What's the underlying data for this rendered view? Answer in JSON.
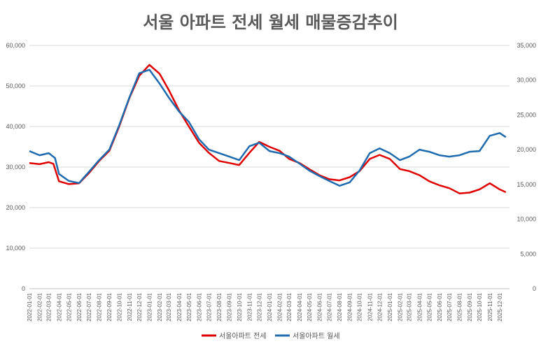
{
  "chart_data": {
    "type": "line",
    "title": "서울 아파트 전세 월세 매물증감추이",
    "legend_position": "bottom",
    "grid": true,
    "y_left": {
      "range": [
        0,
        60000
      ],
      "ticks": [
        "0",
        "10,000",
        "20,000",
        "30,000",
        "40,000",
        "50,000",
        "60,000"
      ]
    },
    "y_right": {
      "range": [
        0,
        35000
      ],
      "ticks": [
        "0",
        "5,000",
        "10,000",
        "15,000",
        "20,000",
        "25,000",
        "30,000",
        "35,000"
      ]
    },
    "x_labels": [
      "2022-01-01",
      "2022-02-01",
      "2022-03-01",
      "2022-04-01",
      "2022-05-01",
      "2022-06-01",
      "2022-07-01",
      "2022-08-01",
      "2022-09-01",
      "2022-10-01",
      "2022-11-01",
      "2022-12-01",
      "2023-01-01",
      "2023-02-01",
      "2023-03-01",
      "2023-04-01",
      "2023-05-01",
      "2023-06-01",
      "2023-07-01",
      "2023-08-01",
      "2023-09-01",
      "2023-10-01",
      "2023-11-01",
      "2023-12-01",
      "2024-01-01",
      "2024-02-01",
      "2024-03-01",
      "2024-04-01",
      "2024-05-01",
      "2024-06-01",
      "2024-07-01",
      "2024-08-01",
      "2024-09-01",
      "2024-10-01",
      "2024-11-01",
      "2024-12-01",
      "2025-01-01",
      "2025-02-01",
      "2025-03-01",
      "2025-04-01",
      "2025-05-01",
      "2025-06-01",
      "2025-07-01",
      "2025-08-01",
      "2025-09-01",
      "2025-10-01",
      "2025-11-01",
      "2025-12-01"
    ],
    "series": [
      {
        "name": "서울아파트 전세",
        "axis": "left",
        "color": "#e00000",
        "points": [
          [
            "2022-01-01",
            31000
          ],
          [
            "2022-02-01",
            30700
          ],
          [
            "2022-03-01",
            31200
          ],
          [
            "2022-03-15",
            30800
          ],
          [
            "2022-04-01",
            26500
          ],
          [
            "2022-05-01",
            25800
          ],
          [
            "2022-06-01",
            26000
          ],
          [
            "2022-07-01",
            28500
          ],
          [
            "2022-08-01",
            31500
          ],
          [
            "2022-09-01",
            34000
          ],
          [
            "2022-10-01",
            40000
          ],
          [
            "2022-11-01",
            47000
          ],
          [
            "2022-12-01",
            52500
          ],
          [
            "2023-01-01",
            55200
          ],
          [
            "2023-02-01",
            53000
          ],
          [
            "2023-03-01",
            49000
          ],
          [
            "2023-04-01",
            44000
          ],
          [
            "2023-05-01",
            40000
          ],
          [
            "2023-06-01",
            36000
          ],
          [
            "2023-07-01",
            33500
          ],
          [
            "2023-08-01",
            31500
          ],
          [
            "2023-09-01",
            31000
          ],
          [
            "2023-10-01",
            30500
          ],
          [
            "2023-11-01",
            33500
          ],
          [
            "2023-12-01",
            36200
          ],
          [
            "2024-01-01",
            35000
          ],
          [
            "2024-02-01",
            34000
          ],
          [
            "2024-03-01",
            32000
          ],
          [
            "2024-04-01",
            31000
          ],
          [
            "2024-05-01",
            29500
          ],
          [
            "2024-06-01",
            28000
          ],
          [
            "2024-07-01",
            27000
          ],
          [
            "2024-08-01",
            26700
          ],
          [
            "2024-09-01",
            27500
          ],
          [
            "2024-10-01",
            29000
          ],
          [
            "2024-11-01",
            32000
          ],
          [
            "2024-12-01",
            33000
          ],
          [
            "2025-01-01",
            32000
          ],
          [
            "2025-02-01",
            29500
          ],
          [
            "2025-03-01",
            29000
          ],
          [
            "2025-04-01",
            28000
          ],
          [
            "2025-05-01",
            26500
          ],
          [
            "2025-06-01",
            25500
          ],
          [
            "2025-07-01",
            24800
          ],
          [
            "2025-08-01",
            23500
          ],
          [
            "2025-09-01",
            23700
          ],
          [
            "2025-10-01",
            24500
          ],
          [
            "2025-11-01",
            26000
          ],
          [
            "2025-12-01",
            24500
          ],
          [
            "2025-12-20",
            23800
          ]
        ]
      },
      {
        "name": "서울아파트 월세",
        "axis": "right",
        "color": "#1f6bb0",
        "points": [
          [
            "2022-01-01",
            19800
          ],
          [
            "2022-02-01",
            19200
          ],
          [
            "2022-03-01",
            19500
          ],
          [
            "2022-03-20",
            18800
          ],
          [
            "2022-04-01",
            16500
          ],
          [
            "2022-05-01",
            15500
          ],
          [
            "2022-06-01",
            15200
          ],
          [
            "2022-07-01",
            16800
          ],
          [
            "2022-08-01",
            18500
          ],
          [
            "2022-09-01",
            20000
          ],
          [
            "2022-10-01",
            23500
          ],
          [
            "2022-11-01",
            27500
          ],
          [
            "2022-12-01",
            31000
          ],
          [
            "2023-01-01",
            31500
          ],
          [
            "2023-02-01",
            29500
          ],
          [
            "2023-03-01",
            27500
          ],
          [
            "2023-04-01",
            25500
          ],
          [
            "2023-05-01",
            24000
          ],
          [
            "2023-06-01",
            21500
          ],
          [
            "2023-07-01",
            20000
          ],
          [
            "2023-08-01",
            19500
          ],
          [
            "2023-09-01",
            19000
          ],
          [
            "2023-10-01",
            18500
          ],
          [
            "2023-11-01",
            20500
          ],
          [
            "2023-12-01",
            21000
          ],
          [
            "2024-01-01",
            19800
          ],
          [
            "2024-02-01",
            19500
          ],
          [
            "2024-03-01",
            19000
          ],
          [
            "2024-04-01",
            18000
          ],
          [
            "2024-05-01",
            17000
          ],
          [
            "2024-06-01",
            16200
          ],
          [
            "2024-07-01",
            15500
          ],
          [
            "2024-08-01",
            14800
          ],
          [
            "2024-09-01",
            15300
          ],
          [
            "2024-10-01",
            17000
          ],
          [
            "2024-11-01",
            19500
          ],
          [
            "2024-12-01",
            20200
          ],
          [
            "2025-01-01",
            19500
          ],
          [
            "2025-02-01",
            18500
          ],
          [
            "2025-03-01",
            19000
          ],
          [
            "2025-04-01",
            20000
          ],
          [
            "2025-05-01",
            19700
          ],
          [
            "2025-06-01",
            19200
          ],
          [
            "2025-07-01",
            19000
          ],
          [
            "2025-08-01",
            19200
          ],
          [
            "2025-09-01",
            19700
          ],
          [
            "2025-10-01",
            19800
          ],
          [
            "2025-11-01",
            22000
          ],
          [
            "2025-12-01",
            22400
          ],
          [
            "2025-12-20",
            21800
          ]
        ]
      }
    ]
  }
}
